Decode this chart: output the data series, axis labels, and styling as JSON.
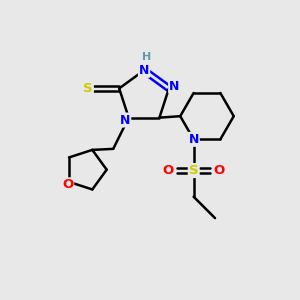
{
  "background_color": "#e8e8e8",
  "atom_colors": {
    "N": "#0000ff",
    "O": "#ff0000",
    "S_thiol": "#cccc00",
    "S_sulfonyl": "#cccc00",
    "C": "#000000",
    "H": "#5f9aaa"
  }
}
